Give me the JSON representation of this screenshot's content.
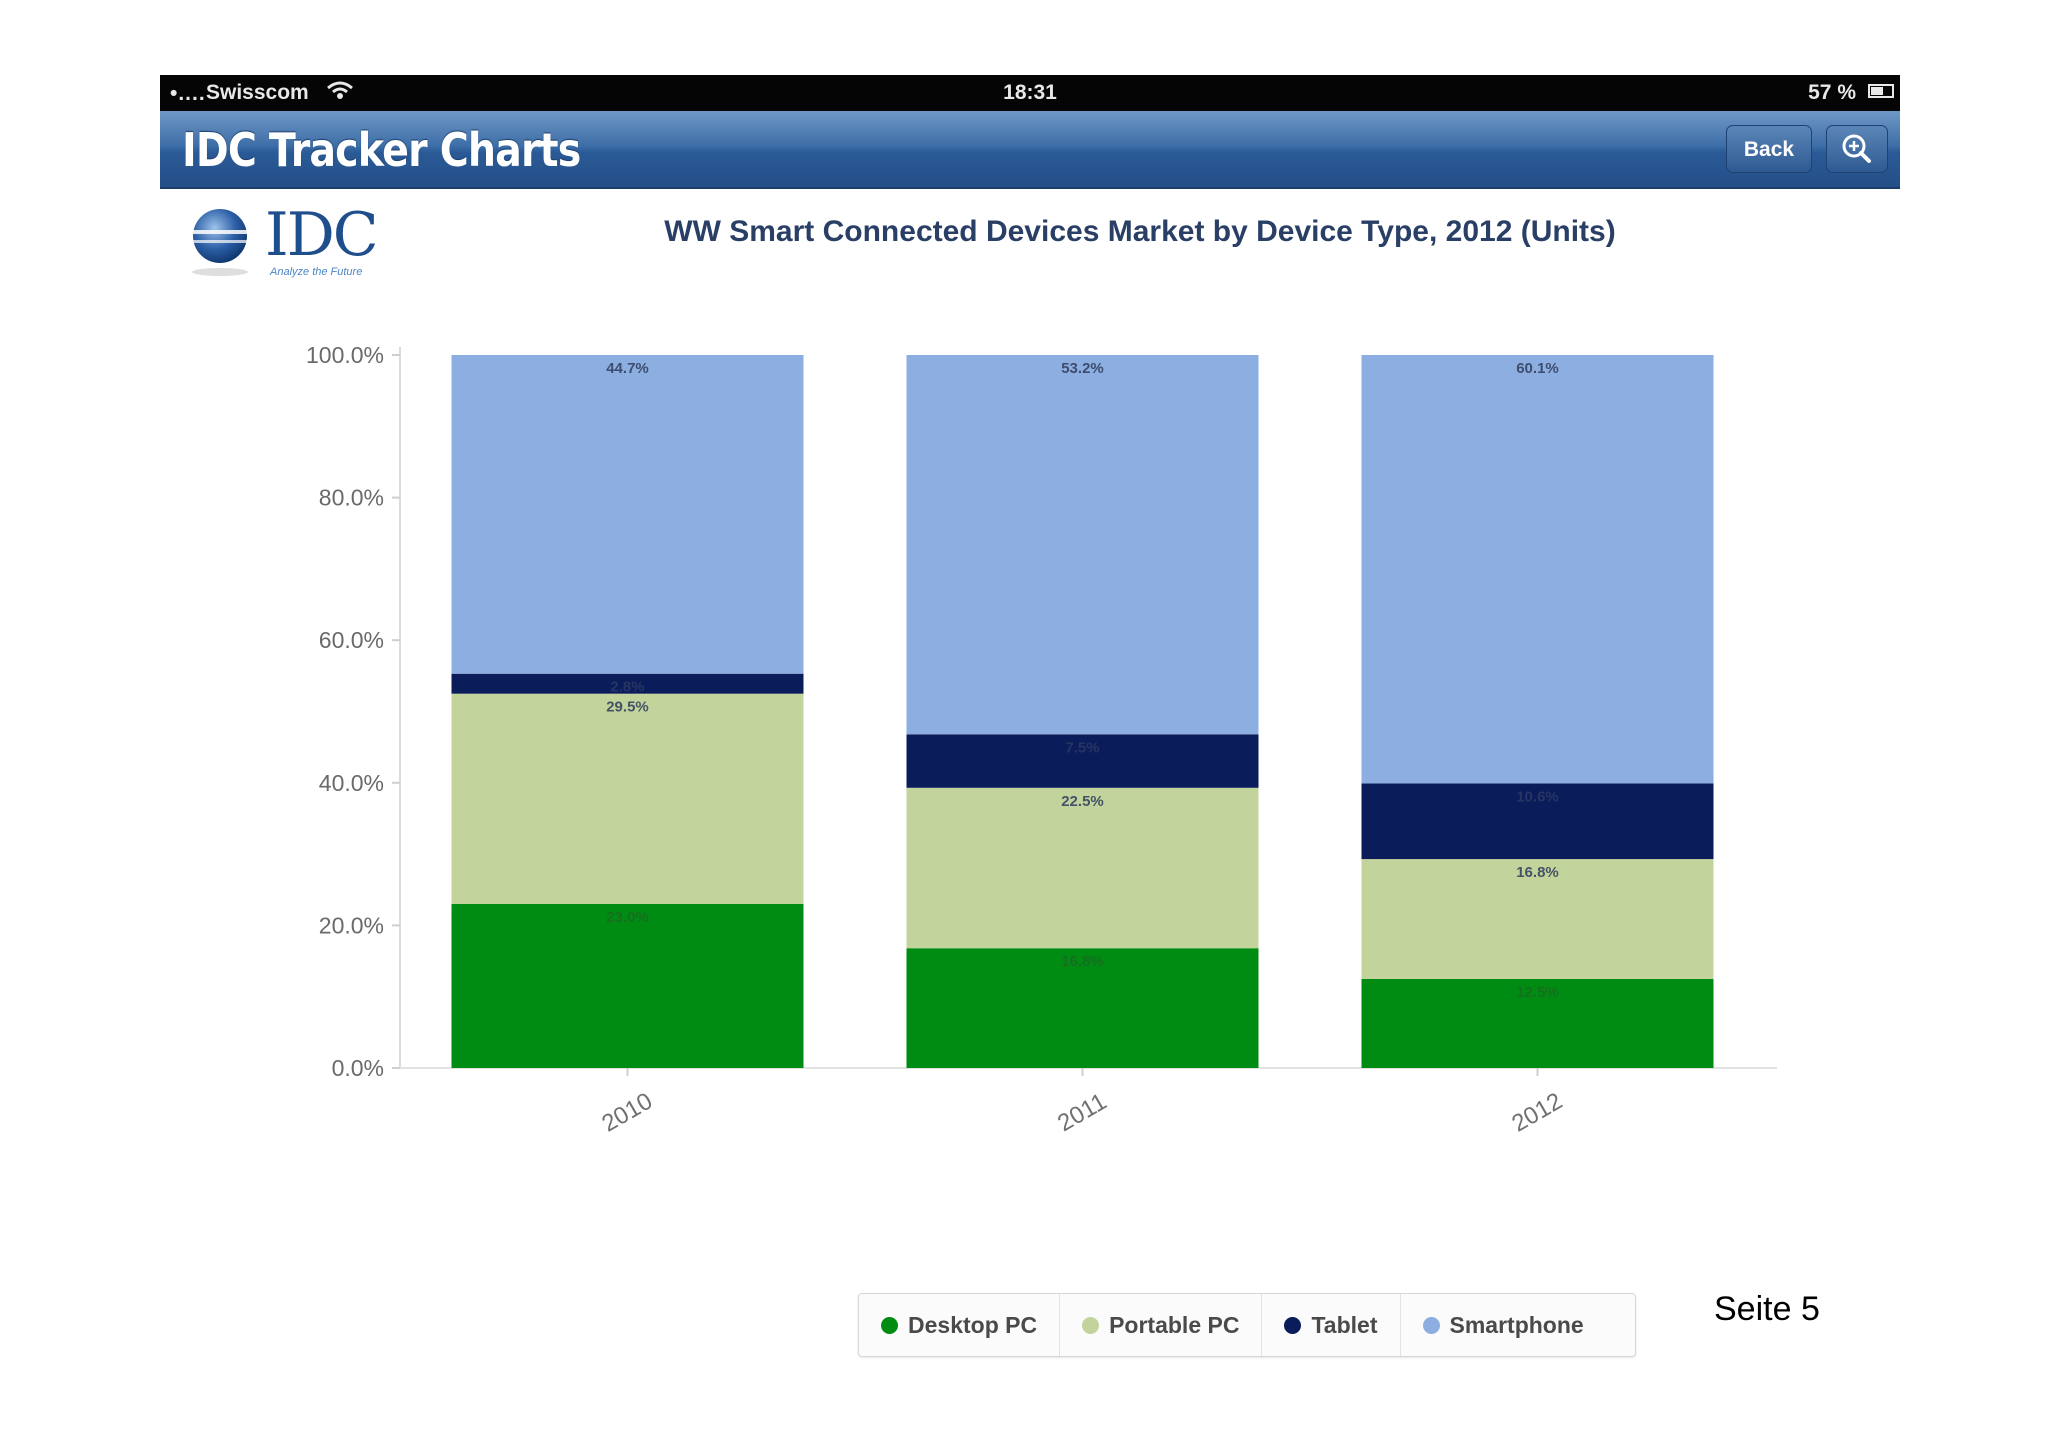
{
  "status_bar": {
    "signal": "•....",
    "carrier": "Swisscom",
    "wifi_icon": "wifi-icon",
    "time": "18:31",
    "battery": "57 %"
  },
  "nav": {
    "title": "IDC Tracker Charts",
    "back_label": "Back",
    "zoom_icon": "zoom-in-icon"
  },
  "logo": {
    "text": "IDC",
    "tagline": "Analyze the Future"
  },
  "colors": {
    "desktop": "#008c12",
    "portable": "#c3d39c",
    "tablet": "#0b1c5a",
    "smartphone": "#8daee0"
  },
  "chart_data": {
    "type": "bar",
    "stacked": true,
    "title": "WW Smart Connected Devices Market by Device Type, 2012 (Units)",
    "categories": [
      "2010",
      "2011",
      "2012"
    ],
    "ylim": [
      0,
      100
    ],
    "yticks": [
      "0.0%",
      "20.0%",
      "40.0%",
      "60.0%",
      "80.0%",
      "100.0%"
    ],
    "xlabel": "",
    "ylabel": "",
    "series": [
      {
        "name": "Desktop PC",
        "values": [
          23.0,
          16.8,
          12.5
        ],
        "labels": [
          "23.0%",
          "16.8%",
          "12.5%"
        ]
      },
      {
        "name": "Portable PC",
        "values": [
          29.5,
          22.5,
          16.8
        ],
        "labels": [
          "29.5%",
          "22.5%",
          "16.8%"
        ]
      },
      {
        "name": "Tablet",
        "values": [
          2.8,
          7.5,
          10.6
        ],
        "labels": [
          "2.8%",
          "7.5%",
          "10.6%"
        ]
      },
      {
        "name": "Smartphone",
        "values": [
          44.7,
          53.2,
          60.1
        ],
        "labels": [
          "44.7%",
          "53.2%",
          "60.1%"
        ]
      }
    ],
    "legend_position": "bottom-center"
  },
  "footer": {
    "page": "Seite 5"
  }
}
